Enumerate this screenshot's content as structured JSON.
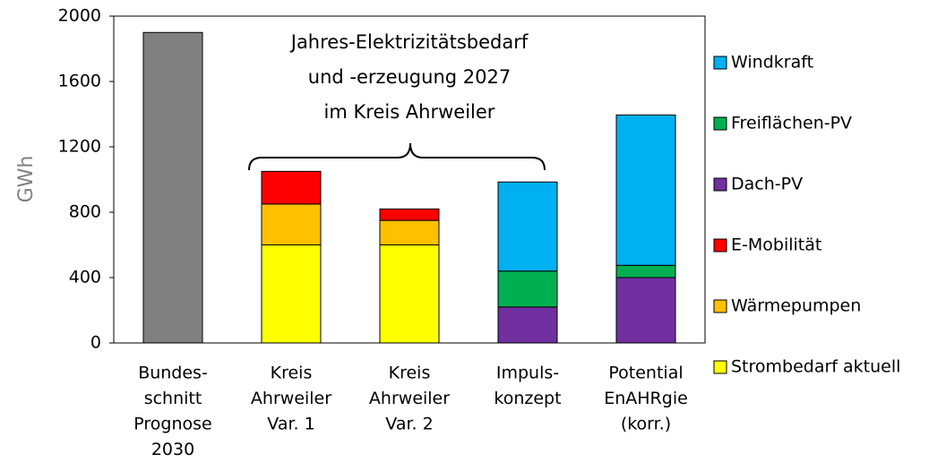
{
  "chart_data": {
    "type": "bar",
    "stacked": true,
    "ylabel": "GWh",
    "annotation": [
      "Jahres-Elektrizitätsbedarf",
      "und -erzeugung 2027",
      "im Kreis Ahrweiler"
    ],
    "categories": [
      [
        "Bundes-",
        "schnitt",
        "Prognose",
        "2030"
      ],
      [
        "Kreis",
        "Ahrweiler",
        "Var. 1"
      ],
      [
        "Kreis",
        "Ahrweiler",
        "Var. 2"
      ],
      [
        "Impuls-",
        "konzept"
      ],
      [
        "Potential",
        "EnAHRgie",
        "(korr.)"
      ]
    ],
    "series": [
      {
        "color": "#808080",
        "values": [
          1900,
          null,
          null,
          null,
          null
        ]
      },
      {
        "name": "Strombedarf aktuell",
        "color": "#ffff00",
        "values": [
          null,
          600,
          600,
          null,
          null
        ]
      },
      {
        "name": "Wärmepumpen",
        "color": "#ffc000",
        "values": [
          null,
          250,
          150,
          null,
          null
        ]
      },
      {
        "name": "E-Mobilität",
        "color": "#ff0000",
        "values": [
          null,
          200,
          70,
          null,
          null
        ]
      },
      {
        "name": "Dach-PV",
        "color": "#7030a0",
        "values": [
          null,
          null,
          null,
          220,
          400
        ]
      },
      {
        "name": "Freiflächen-PV",
        "color": "#00b050",
        "values": [
          null,
          null,
          null,
          220,
          75
        ]
      },
      {
        "name": "Windkraft",
        "color": "#00b0f0",
        "values": [
          null,
          null,
          null,
          545,
          920
        ]
      }
    ],
    "ylim": [
      0,
      2000
    ],
    "yticks": [
      0,
      400,
      800,
      1200,
      1600,
      2000
    ],
    "grid": false,
    "legend": "right"
  }
}
